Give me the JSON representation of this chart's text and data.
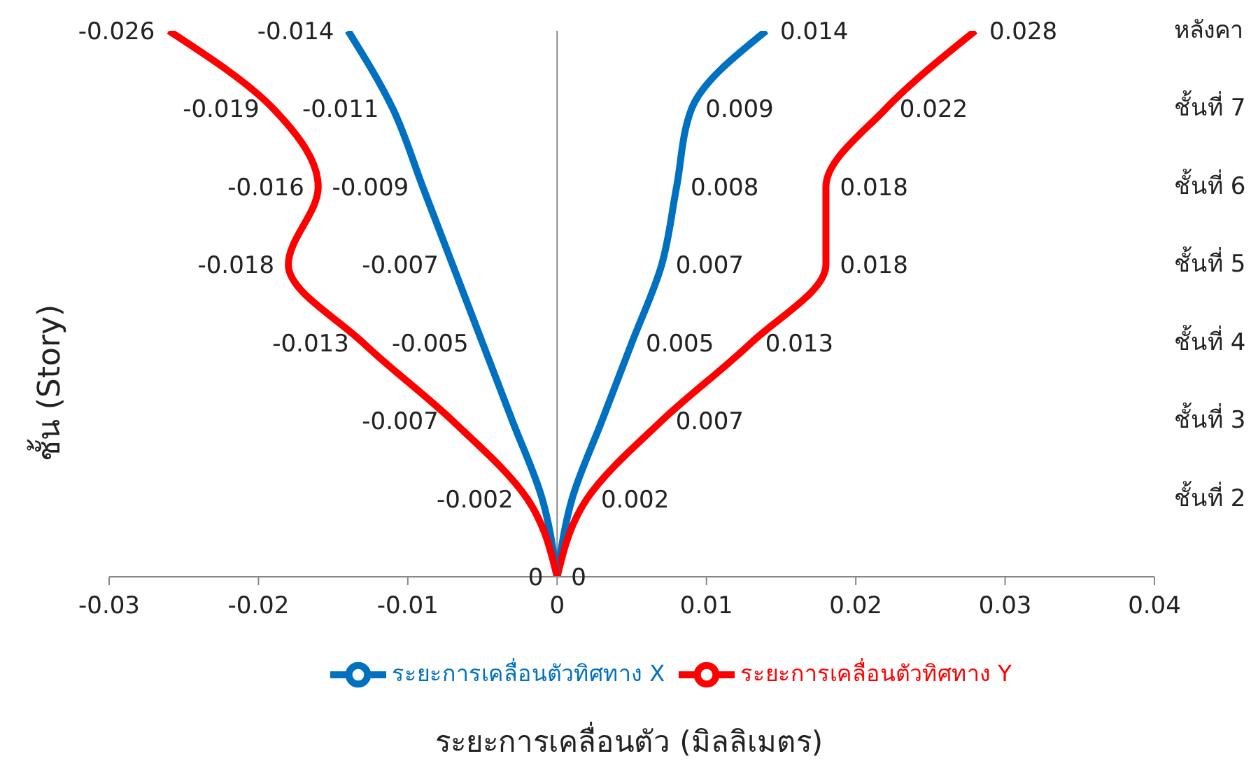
{
  "chart_data": {
    "type": "line",
    "orientation": "horizontal",
    "xlabel": "ระยะการเคลื่อนตัว (มิลลิเมตร)",
    "ylabel": "ชั้น (Story)",
    "categories": [
      "หลังคา",
      "ชั้นที่ 7",
      "ชั้นที่ 6",
      "ชั้นที่ 5",
      "ชั้นที่ 4",
      "ชั้นที่ 3",
      "ชั้นที่ 2",
      null
    ],
    "series": [
      {
        "name": "ระยะการเคลื่อนตัวทิศทาง X",
        "color": "#0070c0",
        "values": [
          0.014,
          0.009,
          0.008,
          0.007,
          0.005,
          0.003,
          0.001,
          0
        ],
        "value_labels": [
          "0.014",
          "0.009",
          "0.008",
          "0.007",
          "0.005",
          null,
          null,
          null
        ]
      },
      {
        "name": "ระยะการเคลื่อนตัวทิศทาง Y",
        "color": "#ff0000",
        "values": [
          0.028,
          0.022,
          0.018,
          0.018,
          0.013,
          0.007,
          0.002,
          0
        ],
        "value_labels": [
          "0.028",
          "0.022",
          "0.018",
          "0.018",
          "0.013",
          "0.007",
          "0.002",
          "0"
        ]
      },
      {
        "color": "#0070c0",
        "values": [
          -0.014,
          -0.011,
          -0.009,
          -0.007,
          -0.005,
          -0.003,
          -0.001,
          0
        ],
        "value_labels": [
          "-0.014",
          "-0.011",
          "-0.009",
          "-0.007",
          "-0.005",
          null,
          null,
          null
        ]
      },
      {
        "color": "#ff0000",
        "values": [
          -0.026,
          -0.019,
          -0.016,
          -0.018,
          -0.013,
          -0.007,
          -0.002,
          0
        ],
        "value_labels": [
          "-0.026",
          "-0.019",
          "-0.016",
          "-0.018",
          "-0.013",
          "-0.007",
          "-0.002",
          "0"
        ]
      }
    ],
    "xlim": [
      -0.03,
      0.04
    ],
    "xticks": [
      -0.03,
      -0.02,
      -0.01,
      0,
      0.01,
      0.02,
      0.03,
      0.04
    ],
    "legend": "bottom",
    "marker": "none",
    "line_style": "solid"
  }
}
